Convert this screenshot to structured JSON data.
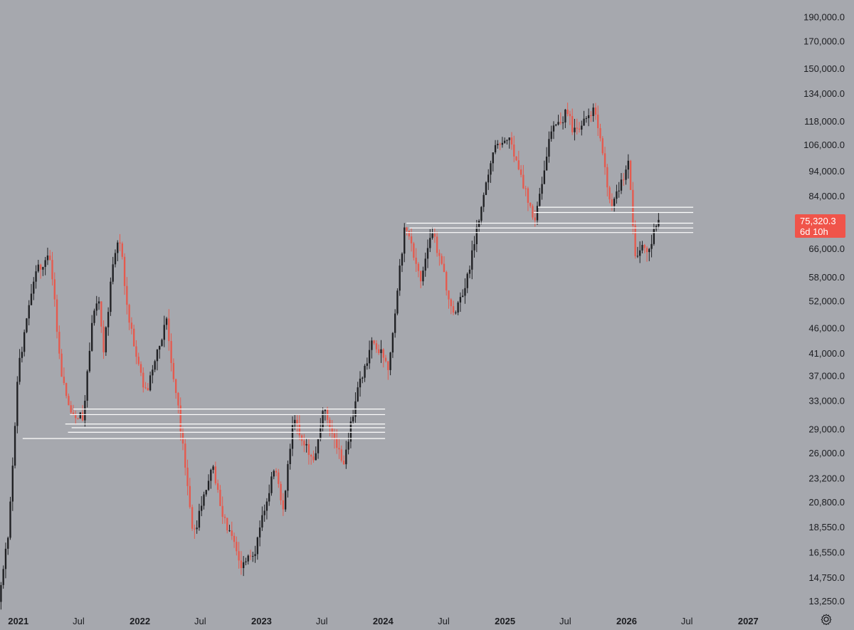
{
  "chart_data": {
    "type": "candlestick",
    "scale": "log",
    "grid": false,
    "colors": {
      "background": "#a6a8ae",
      "up": "#1f2023",
      "down": "#e55a4e",
      "levels": "#ffffff",
      "badge": "#f0544a"
    },
    "y_axis": {
      "ticks": [
        "190,000.0",
        "170,000.0",
        "150,000.0",
        "134,000.0",
        "118,000.0",
        "106,000.0",
        "94,000.0",
        "84,000.0",
        "66,000.0",
        "58,000.0",
        "52,000.0",
        "46,000.0",
        "41,000.0",
        "37,000.0",
        "33,000.0",
        "29,000.0",
        "26,000.0",
        "23,200.0",
        "20,800.0",
        "18,550.0",
        "16,550.0",
        "14,750.0",
        "13,250.0"
      ],
      "range": [
        12800,
        200000
      ]
    },
    "x_axis": {
      "ticks": [
        {
          "label": "2021",
          "date": "2021-01-01",
          "major": true
        },
        {
          "label": "Jul",
          "date": "2021-07-01",
          "major": false
        },
        {
          "label": "2022",
          "date": "2022-01-01",
          "major": true
        },
        {
          "label": "Jul",
          "date": "2022-07-01",
          "major": false
        },
        {
          "label": "2023",
          "date": "2023-01-01",
          "major": true
        },
        {
          "label": "Jul",
          "date": "2023-07-01",
          "major": false
        },
        {
          "label": "2024",
          "date": "2024-01-01",
          "major": true
        },
        {
          "label": "Jul",
          "date": "2024-07-01",
          "major": false
        },
        {
          "label": "2025",
          "date": "2025-01-01",
          "major": true
        },
        {
          "label": "Jul",
          "date": "2025-07-01",
          "major": false
        },
        {
          "label": "2026",
          "date": "2026-01-01",
          "major": true
        },
        {
          "label": "Jul",
          "date": "2026-07-01",
          "major": false
        },
        {
          "label": "2027",
          "date": "2027-01-01",
          "major": true
        }
      ],
      "range": [
        "2020-11-07",
        "2027-04-15"
      ]
    },
    "price_path": [
      [
        "2020-11-10",
        13200
      ],
      [
        "2020-12-10",
        18500
      ],
      [
        "2021-01-08",
        38000
      ],
      [
        "2021-02-20",
        57000
      ],
      [
        "2021-03-13",
        61000
      ],
      [
        "2021-04-14",
        63500
      ],
      [
        "2021-05-19",
        36000
      ],
      [
        "2021-06-22",
        31000
      ],
      [
        "2021-07-20",
        30500
      ],
      [
        "2021-08-20",
        48000
      ],
      [
        "2021-09-06",
        52000
      ],
      [
        "2021-09-22",
        41000
      ],
      [
        "2021-10-20",
        64000
      ],
      [
        "2021-11-10",
        68500
      ],
      [
        "2021-12-04",
        48000
      ],
      [
        "2022-01-24",
        34000
      ],
      [
        "2022-03-28",
        47500
      ],
      [
        "2022-05-12",
        28500
      ],
      [
        "2022-06-18",
        17800
      ],
      [
        "2022-08-14",
        24500
      ],
      [
        "2022-09-20",
        19000
      ],
      [
        "2022-11-09",
        15500
      ],
      [
        "2022-12-20",
        16800
      ],
      [
        "2023-02-15",
        24500
      ],
      [
        "2023-03-12",
        20000
      ],
      [
        "2023-04-14",
        30500
      ],
      [
        "2023-06-15",
        25000
      ],
      [
        "2023-07-14",
        31500
      ],
      [
        "2023-09-11",
        25000
      ],
      [
        "2023-10-24",
        34500
      ],
      [
        "2023-12-08",
        44000
      ],
      [
        "2024-01-23",
        38500
      ],
      [
        "2024-03-14",
        73800
      ],
      [
        "2024-05-01",
        57000
      ],
      [
        "2024-06-05",
        71500
      ],
      [
        "2024-08-05",
        49500
      ],
      [
        "2024-09-06",
        53500
      ],
      [
        "2024-11-12",
        89000
      ],
      [
        "2024-12-17",
        108000
      ],
      [
        "2025-01-20",
        109000
      ],
      [
        "2025-04-07",
        74500
      ],
      [
        "2025-05-22",
        111500
      ],
      [
        "2025-07-14",
        123000
      ],
      [
        "2025-08-02",
        112000
      ],
      [
        "2025-10-06",
        126000
      ],
      [
        "2025-11-21",
        80500
      ],
      [
        "2026-01-14",
        97500
      ],
      [
        "2026-02-06",
        60000
      ],
      [
        "2026-02-20",
        69000
      ],
      [
        "2026-03-15",
        66000
      ],
      [
        "2026-04-12",
        75320.3
      ]
    ],
    "last_price": {
      "value": 75320.3,
      "label": "75,320.3",
      "countdown": "6d 10h"
    },
    "horizontal_levels": [
      {
        "price": 31800,
        "from": "2021-06-15",
        "to": "2024-01-07"
      },
      {
        "price": 31000,
        "from": "2021-06-05",
        "to": "2024-01-07"
      },
      {
        "price": 29700,
        "from": "2021-05-22",
        "to": "2024-01-07"
      },
      {
        "price": 29200,
        "from": "2021-06-10",
        "to": "2024-01-07"
      },
      {
        "price": 28600,
        "from": "2021-05-30",
        "to": "2024-01-07"
      },
      {
        "price": 27800,
        "from": "2021-01-14",
        "to": "2024-01-07"
      },
      {
        "price": 79800,
        "from": "2025-04-10",
        "to": "2026-07-20"
      },
      {
        "price": 77900,
        "from": "2025-03-28",
        "to": "2026-07-20"
      },
      {
        "price": 74200,
        "from": "2024-03-11",
        "to": "2026-07-20"
      },
      {
        "price": 72600,
        "from": "2024-03-20",
        "to": "2026-07-20"
      },
      {
        "price": 71100,
        "from": "2024-03-08",
        "to": "2026-07-20"
      }
    ]
  },
  "icons": {
    "settings": "settings-gear-icon"
  }
}
